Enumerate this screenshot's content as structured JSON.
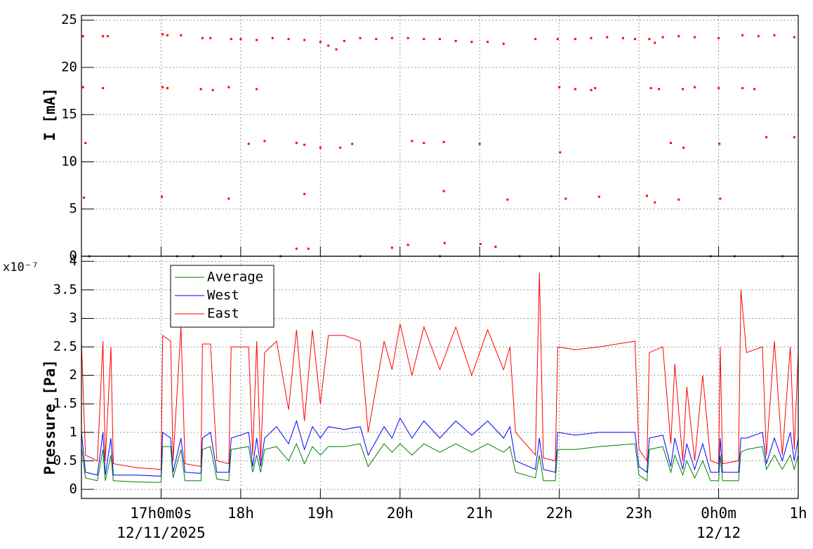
{
  "chart_data": [
    {
      "type": "scatter",
      "ylabel": "I [mA]",
      "xlim": [
        16,
        25
      ],
      "xticks": [
        17,
        18,
        19,
        20,
        21,
        22,
        23,
        24,
        25
      ],
      "ylim": [
        0,
        25.5
      ],
      "yticks": [
        0,
        5,
        10,
        15,
        20,
        25
      ],
      "grid": true,
      "series": [
        {
          "color": "#ff0000",
          "x": [
            16.02,
            16.27,
            16.33,
            17.02,
            17.08,
            17.25,
            17.52,
            17.62,
            17.88,
            18.0,
            18.2,
            18.4,
            18.6,
            18.8,
            19.0,
            19.1,
            19.2,
            19.3,
            19.5,
            19.7,
            19.9,
            20.1,
            20.3,
            20.5,
            20.7,
            20.9,
            21.1,
            21.3,
            21.7,
            21.98,
            22.2,
            22.4,
            22.6,
            22.8,
            22.95,
            23.13,
            23.2,
            23.3,
            23.5,
            23.7,
            24.0,
            24.3,
            24.5,
            24.7,
            24.95,
            16.02,
            16.05,
            16.03,
            16.27,
            17.02,
            17.08,
            17.5,
            17.65,
            17.85,
            18.2,
            18.1,
            18.3,
            18.7,
            18.8,
            19.0,
            19.25,
            19.4,
            20.15,
            20.3,
            20.55,
            21.0,
            22.0,
            22.2,
            22.4,
            22.45,
            23.15,
            23.25,
            23.55,
            23.7,
            24.0,
            24.3,
            24.45,
            23.4,
            23.56,
            24.01,
            24.6,
            24.95,
            17.01,
            17.85,
            18.8,
            20.55,
            21.35,
            22.08,
            22.5,
            23.1,
            23.2,
            23.5,
            24.02,
            18.7,
            18.85,
            19.9,
            20.1,
            20.56,
            21.01,
            21.2,
            22.01,
            16.1,
            16.6,
            17.2,
            17.4,
            17.75,
            18.5,
            19.5,
            20.5,
            21.5,
            21.9,
            22.5,
            23.0,
            23.9,
            24.2,
            24.8
          ],
          "values": [
            23.3,
            23.3,
            23.3,
            23.5,
            23.4,
            23.4,
            23.1,
            23.1,
            23.0,
            23.0,
            22.9,
            23.1,
            23.0,
            22.9,
            22.7,
            22.3,
            21.9,
            22.8,
            23.1,
            23.0,
            23.1,
            23.1,
            23.0,
            23.0,
            22.8,
            22.7,
            22.7,
            22.5,
            23.0,
            23.0,
            23.0,
            23.1,
            23.2,
            23.1,
            23.0,
            23.0,
            22.6,
            23.2,
            23.3,
            23.2,
            23.1,
            23.4,
            23.3,
            23.4,
            23.2,
            17.9,
            12,
            6.2,
            17.8,
            17.9,
            17.8,
            17.7,
            17.6,
            17.9,
            17.7,
            11.9,
            12.2,
            12.0,
            11.8,
            11.5,
            11.5,
            11.9,
            12.2,
            12.0,
            12.1,
            11.9,
            17.9,
            17.7,
            17.6,
            17.8,
            17.8,
            17.7,
            17.7,
            17.9,
            17.8,
            17.8,
            17.7,
            12.0,
            11.5,
            11.9,
            12.6,
            12.6,
            6.3,
            6.1,
            6.6,
            6.9,
            6.0,
            6.1,
            6.3,
            6.4,
            5.7,
            6.0,
            6.1,
            0.8,
            0.8,
            0.9,
            1.2,
            1.4,
            1.3,
            1.0,
            11.0,
            0,
            0,
            0,
            0,
            0,
            0,
            0,
            0,
            0,
            0,
            0,
            0,
            0,
            0,
            0
          ]
        }
      ]
    },
    {
      "type": "line",
      "ylabel": "Pressure [Pa]",
      "multiplier": "x10⁻⁷",
      "xlim": [
        16,
        25
      ],
      "xticks": [
        {
          "value": 17,
          "label": "17h0m0s"
        },
        {
          "value": 18,
          "label": "18h"
        },
        {
          "value": 19,
          "label": "19h"
        },
        {
          "value": 20,
          "label": "20h"
        },
        {
          "value": 21,
          "label": "21h"
        },
        {
          "value": 22,
          "label": "22h"
        },
        {
          "value": 23,
          "label": "23h"
        },
        {
          "value": 24,
          "label": "0h0m"
        },
        {
          "value": 25,
          "label": "1h"
        }
      ],
      "date_labels": [
        {
          "value": 17,
          "label": "12/11/2025"
        },
        {
          "value": 24,
          "label": "12/12"
        }
      ],
      "ylim": [
        -0.16,
        4.09
      ],
      "yticks": [
        0,
        0.5,
        1,
        1.5,
        2,
        2.5,
        3,
        3.5,
        4
      ],
      "grid": true,
      "legend": "top-left",
      "x": [
        16.0,
        16.05,
        16.2,
        16.27,
        16.3,
        16.37,
        16.4,
        16.7,
        17.0,
        17.02,
        17.12,
        17.15,
        17.25,
        17.3,
        17.5,
        17.52,
        17.62,
        17.7,
        17.85,
        17.88,
        18.1,
        18.15,
        18.2,
        18.25,
        18.3,
        18.45,
        18.6,
        18.7,
        18.8,
        18.9,
        19.0,
        19.1,
        19.3,
        19.5,
        19.6,
        19.8,
        19.9,
        20.0,
        20.15,
        20.3,
        20.5,
        20.7,
        20.9,
        21.1,
        21.3,
        21.38,
        21.45,
        21.7,
        21.75,
        21.8,
        21.95,
        21.98,
        22.2,
        22.5,
        22.95,
        23.0,
        23.1,
        23.13,
        23.3,
        23.4,
        23.45,
        23.55,
        23.6,
        23.7,
        23.8,
        23.9,
        24.0,
        24.02,
        24.05,
        24.25,
        24.28,
        24.35,
        24.55,
        24.6,
        24.7,
        24.8,
        24.9,
        24.95,
        25.0
      ],
      "series": [
        {
          "name": "Average",
          "color": "#008000",
          "values": [
            0.75,
            0.2,
            0.15,
            0.7,
            0.15,
            0.6,
            0.15,
            0.13,
            0.12,
            0.75,
            0.75,
            0.2,
            0.7,
            0.15,
            0.15,
            0.7,
            0.75,
            0.18,
            0.15,
            0.7,
            0.75,
            0.3,
            0.6,
            0.3,
            0.7,
            0.75,
            0.5,
            0.8,
            0.45,
            0.75,
            0.6,
            0.75,
            0.75,
            0.8,
            0.4,
            0.8,
            0.65,
            0.8,
            0.6,
            0.8,
            0.65,
            0.8,
            0.65,
            0.8,
            0.65,
            0.75,
            0.3,
            0.2,
            0.6,
            0.15,
            0.15,
            0.7,
            0.7,
            0.75,
            0.8,
            0.25,
            0.15,
            0.7,
            0.75,
            0.3,
            0.6,
            0.25,
            0.5,
            0.2,
            0.5,
            0.15,
            0.15,
            0.6,
            0.15,
            0.15,
            0.65,
            0.7,
            0.75,
            0.35,
            0.6,
            0.35,
            0.6,
            0.35,
            0.6
          ]
        },
        {
          "name": "West",
          "color": "#0000ff",
          "values": [
            1.0,
            0.3,
            0.25,
            1.0,
            0.25,
            0.9,
            0.25,
            0.25,
            0.23,
            1.0,
            0.9,
            0.3,
            0.9,
            0.3,
            0.28,
            0.9,
            1.0,
            0.3,
            0.3,
            0.9,
            1.0,
            0.4,
            0.9,
            0.4,
            0.9,
            1.1,
            0.8,
            1.2,
            0.7,
            1.1,
            0.9,
            1.1,
            1.05,
            1.1,
            0.6,
            1.1,
            0.9,
            1.25,
            0.9,
            1.2,
            0.9,
            1.2,
            0.95,
            1.2,
            0.9,
            1.1,
            0.5,
            0.35,
            0.9,
            0.35,
            0.3,
            1.0,
            0.95,
            1.0,
            1.0,
            0.4,
            0.3,
            0.9,
            0.95,
            0.4,
            0.9,
            0.35,
            0.8,
            0.35,
            0.8,
            0.3,
            0.3,
            0.9,
            0.3,
            0.3,
            0.9,
            0.9,
            1.0,
            0.45,
            0.9,
            0.5,
            1.0,
            0.5,
            0.9
          ]
        },
        {
          "name": "East",
          "color": "#ff0000",
          "values": [
            2.6,
            0.6,
            0.5,
            2.6,
            0.5,
            2.5,
            0.45,
            0.38,
            0.35,
            2.7,
            2.6,
            0.5,
            2.85,
            0.45,
            0.4,
            2.55,
            2.55,
            0.5,
            0.45,
            2.5,
            2.5,
            0.6,
            2.6,
            0.5,
            2.4,
            2.6,
            1.4,
            2.8,
            1.2,
            2.8,
            1.5,
            2.7,
            2.7,
            2.6,
            1.0,
            2.6,
            2.1,
            2.9,
            2.0,
            2.85,
            2.1,
            2.85,
            2.0,
            2.8,
            2.1,
            2.5,
            1.0,
            0.6,
            3.8,
            0.55,
            0.5,
            2.5,
            2.45,
            2.5,
            2.6,
            0.7,
            0.5,
            2.4,
            2.5,
            0.8,
            2.2,
            0.5,
            1.8,
            0.5,
            2.0,
            0.5,
            0.45,
            2.5,
            0.45,
            0.5,
            3.5,
            2.4,
            2.5,
            0.6,
            2.6,
            0.6,
            2.5,
            0.7,
            2.4
          ]
        }
      ]
    }
  ]
}
